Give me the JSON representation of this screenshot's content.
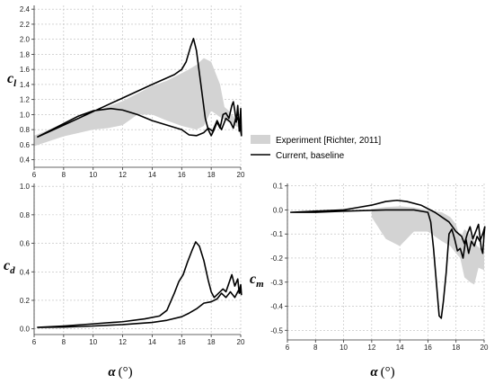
{
  "chart_data": [
    {
      "id": "cl",
      "type": "line",
      "ylabel_main": "c",
      "ylabel_sub": "l",
      "xlim": [
        6,
        20
      ],
      "ylim": [
        0.3,
        2.45
      ],
      "xticks": [
        6,
        8,
        10,
        12,
        14,
        16,
        18,
        20
      ],
      "yticks": [
        0.4,
        0.6,
        0.8,
        1.0,
        1.2,
        1.4,
        1.6,
        1.8,
        2.0,
        2.2,
        2.4
      ],
      "ytick_labels": [
        "0.4",
        "0.6",
        "0.8",
        "1.0",
        "1.2",
        "1.4",
        "1.6",
        "1.8",
        "2.0",
        "2.2",
        "2.4"
      ],
      "grid": true,
      "series": [
        {
          "name": "Experiment [Richter, 2011]",
          "kind": "band",
          "upper": [
            [
              6.0,
              0.72
            ],
            [
              8.0,
              0.88
            ],
            [
              10.0,
              1.03
            ],
            [
              12.0,
              1.18
            ],
            [
              14.0,
              1.38
            ],
            [
              15.0,
              1.45
            ],
            [
              16.0,
              1.55
            ],
            [
              16.5,
              1.6
            ],
            [
              17.0,
              1.66
            ],
            [
              17.5,
              1.75
            ],
            [
              18.0,
              1.7
            ],
            [
              18.3,
              1.55
            ],
            [
              18.6,
              1.4
            ],
            [
              18.9,
              1.1
            ],
            [
              19.2,
              1.05
            ],
            [
              19.6,
              0.95
            ],
            [
              20.0,
              0.9
            ]
          ],
          "lower": [
            [
              6.0,
              0.58
            ],
            [
              8.0,
              0.71
            ],
            [
              10.0,
              0.8
            ],
            [
              11.0,
              0.82
            ],
            [
              12.0,
              0.86
            ],
            [
              13.0,
              1.0
            ],
            [
              14.0,
              1.0
            ],
            [
              15.0,
              0.92
            ],
            [
              16.0,
              0.85
            ],
            [
              17.0,
              0.8
            ],
            [
              17.5,
              0.85
            ],
            [
              18.0,
              1.05
            ],
            [
              18.5,
              0.98
            ],
            [
              19.0,
              0.92
            ],
            [
              19.5,
              0.86
            ],
            [
              20.0,
              0.82
            ]
          ]
        },
        {
          "name": "Current, baseline",
          "kind": "line",
          "points": [
            [
              6.2,
              0.7
            ],
            [
              8.0,
              0.86
            ],
            [
              10.0,
              1.04
            ],
            [
              12.0,
              1.22
            ],
            [
              14.0,
              1.4
            ],
            [
              15.5,
              1.53
            ],
            [
              16.0,
              1.6
            ],
            [
              16.3,
              1.7
            ],
            [
              16.6,
              1.9
            ],
            [
              16.8,
              2.01
            ],
            [
              17.0,
              1.85
            ],
            [
              17.3,
              1.4
            ],
            [
              17.6,
              0.95
            ],
            [
              17.8,
              0.8
            ],
            [
              18.0,
              0.72
            ],
            [
              18.2,
              0.8
            ],
            [
              18.4,
              0.9
            ],
            [
              18.6,
              0.82
            ],
            [
              18.8,
              1.0
            ],
            [
              19.0,
              1.02
            ],
            [
              19.2,
              0.95
            ],
            [
              19.4,
              1.12
            ],
            [
              19.5,
              1.17
            ],
            [
              19.6,
              1.05
            ],
            [
              19.7,
              0.9
            ],
            [
              19.8,
              1.12
            ],
            [
              19.9,
              0.78
            ],
            [
              20.0,
              1.08
            ],
            [
              20.05,
              0.72
            ],
            [
              19.9,
              0.9
            ],
            [
              19.7,
              0.98
            ],
            [
              19.5,
              0.82
            ],
            [
              19.3,
              0.9
            ],
            [
              19.0,
              0.95
            ],
            [
              18.7,
              0.8
            ],
            [
              18.4,
              0.92
            ],
            [
              18.1,
              0.78
            ],
            [
              17.8,
              0.82
            ],
            [
              17.5,
              0.76
            ],
            [
              17.0,
              0.72
            ],
            [
              16.5,
              0.73
            ],
            [
              16.0,
              0.8
            ],
            [
              15.0,
              0.86
            ],
            [
              14.0,
              0.92
            ],
            [
              13.0,
              1.0
            ],
            [
              12.0,
              1.06
            ],
            [
              11.2,
              1.08
            ],
            [
              10.0,
              1.05
            ],
            [
              9.0,
              0.98
            ],
            [
              8.0,
              0.88
            ],
            [
              7.0,
              0.78
            ],
            [
              6.2,
              0.7
            ]
          ]
        }
      ]
    },
    {
      "id": "cd",
      "type": "line",
      "ylabel_main": "c",
      "ylabel_sub": "d",
      "xlabel_main": "α",
      "xlabel_unit": "(°)",
      "xlim": [
        6,
        20
      ],
      "ylim": [
        -0.04,
        1.02
      ],
      "xticks": [
        6,
        8,
        10,
        12,
        14,
        16,
        18,
        20
      ],
      "yticks": [
        0.0,
        0.2,
        0.4,
        0.6,
        0.8,
        1.0
      ],
      "ytick_labels": [
        "0.0",
        "0.2",
        "0.4",
        "0.6",
        "0.8",
        "1.0"
      ],
      "grid": true,
      "series": [
        {
          "name": "Current, baseline",
          "kind": "line",
          "points": [
            [
              6.2,
              0.01
            ],
            [
              8.0,
              0.02
            ],
            [
              10.0,
              0.035
            ],
            [
              12.0,
              0.05
            ],
            [
              13.5,
              0.07
            ],
            [
              14.5,
              0.09
            ],
            [
              15.0,
              0.13
            ],
            [
              15.5,
              0.25
            ],
            [
              15.8,
              0.33
            ],
            [
              16.1,
              0.38
            ],
            [
              16.4,
              0.47
            ],
            [
              16.7,
              0.55
            ],
            [
              16.95,
              0.61
            ],
            [
              17.2,
              0.58
            ],
            [
              17.5,
              0.48
            ],
            [
              17.8,
              0.34
            ],
            [
              18.0,
              0.26
            ],
            [
              18.2,
              0.22
            ],
            [
              18.5,
              0.25
            ],
            [
              18.8,
              0.28
            ],
            [
              19.0,
              0.26
            ],
            [
              19.2,
              0.32
            ],
            [
              19.4,
              0.38
            ],
            [
              19.6,
              0.3
            ],
            [
              19.8,
              0.35
            ],
            [
              19.9,
              0.25
            ],
            [
              20.0,
              0.31
            ],
            [
              20.05,
              0.24
            ],
            [
              19.9,
              0.28
            ],
            [
              19.6,
              0.22
            ],
            [
              19.3,
              0.26
            ],
            [
              19.0,
              0.22
            ],
            [
              18.7,
              0.25
            ],
            [
              18.4,
              0.21
            ],
            [
              18.0,
              0.19
            ],
            [
              17.5,
              0.18
            ],
            [
              17.0,
              0.14
            ],
            [
              16.5,
              0.11
            ],
            [
              16.0,
              0.085
            ],
            [
              15.0,
              0.06
            ],
            [
              14.0,
              0.045
            ],
            [
              12.0,
              0.03
            ],
            [
              10.0,
              0.02
            ],
            [
              8.0,
              0.012
            ],
            [
              6.2,
              0.01
            ]
          ]
        }
      ]
    },
    {
      "id": "cm",
      "type": "line",
      "ylabel_main": "c",
      "ylabel_sub": "m",
      "xlabel_main": "α",
      "xlabel_unit": "(°)",
      "xlim": [
        6,
        20
      ],
      "ylim": [
        -0.54,
        0.11
      ],
      "xticks": [
        6,
        8,
        10,
        12,
        14,
        16,
        18,
        20
      ],
      "yticks": [
        0.1,
        0.0,
        -0.1,
        -0.2,
        -0.3,
        -0.4,
        -0.5
      ],
      "ytick_labels": [
        "0.1",
        "0.0",
        "-0.1",
        "-0.2",
        "-0.3",
        "-0.4",
        "-0.5"
      ],
      "grid": true,
      "series": [
        {
          "name": "Experiment [Richter, 2011]",
          "kind": "band",
          "upper": [
            [
              12.0,
              0.005
            ],
            [
              13.0,
              0.012
            ],
            [
              14.0,
              0.015
            ],
            [
              15.0,
              0.01
            ],
            [
              16.0,
              0.0
            ],
            [
              17.0,
              -0.01
            ],
            [
              17.6,
              -0.03
            ],
            [
              18.0,
              -0.06
            ],
            [
              18.3,
              -0.12
            ],
            [
              18.6,
              -0.08
            ],
            [
              19.0,
              -0.1
            ],
            [
              19.5,
              -0.15
            ],
            [
              20.0,
              -0.17
            ]
          ],
          "lower": [
            [
              12.0,
              -0.03
            ],
            [
              13.0,
              -0.12
            ],
            [
              14.0,
              -0.15
            ],
            [
              15.0,
              -0.09
            ],
            [
              16.0,
              -0.09
            ],
            [
              17.0,
              -0.13
            ],
            [
              17.6,
              -0.15
            ],
            [
              18.0,
              -0.18
            ],
            [
              18.3,
              -0.2
            ],
            [
              18.6,
              -0.28
            ],
            [
              19.0,
              -0.3
            ],
            [
              19.3,
              -0.31
            ],
            [
              19.6,
              -0.24
            ],
            [
              20.0,
              -0.25
            ]
          ]
        },
        {
          "name": "Current, baseline",
          "kind": "line",
          "points": [
            [
              6.2,
              -0.01
            ],
            [
              8.0,
              -0.005
            ],
            [
              10.0,
              0.0
            ],
            [
              11.0,
              0.01
            ],
            [
              12.0,
              0.02
            ],
            [
              13.0,
              0.035
            ],
            [
              13.8,
              0.04
            ],
            [
              14.5,
              0.035
            ],
            [
              15.5,
              0.02
            ],
            [
              16.5,
              -0.01
            ],
            [
              17.5,
              -0.05
            ],
            [
              18.0,
              -0.09
            ],
            [
              18.4,
              -0.11
            ],
            [
              18.6,
              -0.14
            ],
            [
              18.8,
              -0.1
            ],
            [
              19.0,
              -0.07
            ],
            [
              19.2,
              -0.12
            ],
            [
              19.4,
              -0.09
            ],
            [
              19.6,
              -0.06
            ],
            [
              19.8,
              -0.16
            ],
            [
              19.9,
              -0.18
            ],
            [
              20.0,
              -0.1
            ],
            [
              20.05,
              -0.07
            ],
            [
              19.9,
              -0.1
            ],
            [
              19.7,
              -0.13
            ],
            [
              19.5,
              -0.11
            ],
            [
              19.3,
              -0.15
            ],
            [
              19.1,
              -0.13
            ],
            [
              18.9,
              -0.18
            ],
            [
              18.7,
              -0.12
            ],
            [
              18.5,
              -0.2
            ],
            [
              18.3,
              -0.16
            ],
            [
              18.1,
              -0.17
            ],
            [
              17.9,
              -0.12
            ],
            [
              17.7,
              -0.08
            ],
            [
              17.5,
              -0.1
            ],
            [
              17.3,
              -0.26
            ],
            [
              17.1,
              -0.38
            ],
            [
              16.95,
              -0.45
            ],
            [
              16.8,
              -0.44
            ],
            [
              16.6,
              -0.3
            ],
            [
              16.4,
              -0.16
            ],
            [
              16.2,
              -0.05
            ],
            [
              16.0,
              -0.01
            ],
            [
              15.0,
              0.0
            ],
            [
              13.0,
              0.0
            ],
            [
              10.0,
              -0.005
            ],
            [
              8.0,
              -0.01
            ],
            [
              6.2,
              -0.01
            ]
          ]
        }
      ]
    }
  ],
  "legend": {
    "items": [
      {
        "label": "Experiment [Richter, 2011]",
        "swatch": "band"
      },
      {
        "label": "Current, baseline",
        "swatch": "line"
      }
    ]
  },
  "colors": {
    "band": "#d3d3d3",
    "line": "#000000",
    "grid": "#bbbbbb",
    "axis": "#333333"
  }
}
